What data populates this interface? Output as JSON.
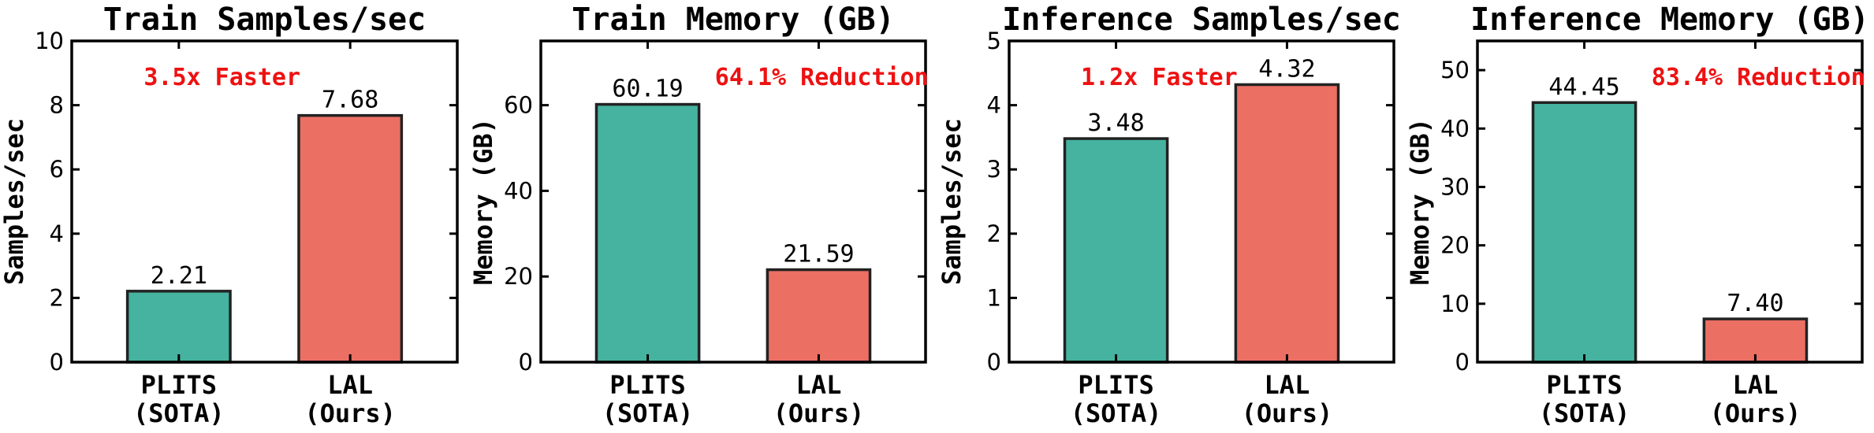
{
  "colors": {
    "sota": "#45b39f",
    "ours": "#ec6f64",
    "annotation": "#ee1111"
  },
  "chart_data": [
    {
      "type": "bar",
      "title": "Train Samples/sec",
      "ylabel": "Samples/sec",
      "categories": [
        [
          "PLITS",
          "(SOTA)"
        ],
        [
          "LAL",
          "(Ours)"
        ]
      ],
      "values": [
        2.21,
        7.68
      ],
      "value_labels": [
        "2.21",
        "7.68"
      ],
      "ylim": [
        0,
        10
      ],
      "yticks": [
        0,
        2,
        4,
        6,
        8,
        10
      ],
      "annotation": "3.5x Faster",
      "annotation_position": "top-left",
      "grid": false
    },
    {
      "type": "bar",
      "title": "Train Memory (GB)",
      "ylabel": "Memory (GB)",
      "categories": [
        [
          "PLITS",
          "(SOTA)"
        ],
        [
          "LAL",
          "(Ours)"
        ]
      ],
      "values": [
        60.19,
        21.59
      ],
      "value_labels": [
        "60.19",
        "21.59"
      ],
      "ylim": [
        0,
        75
      ],
      "yticks": [
        0,
        20,
        40,
        60
      ],
      "annotation": "64.1% Reduction",
      "annotation_position": "top-right",
      "grid": false
    },
    {
      "type": "bar",
      "title": "Inference Samples/sec",
      "ylabel": "Samples/sec",
      "categories": [
        [
          "PLITS",
          "(SOTA)"
        ],
        [
          "LAL",
          "(Ours)"
        ]
      ],
      "values": [
        3.48,
        4.32
      ],
      "value_labels": [
        "3.48",
        "4.32"
      ],
      "ylim": [
        0,
        5
      ],
      "yticks": [
        0,
        1,
        2,
        3,
        4,
        5
      ],
      "annotation": "1.2x Faster",
      "annotation_position": "top-left",
      "grid": false
    },
    {
      "type": "bar",
      "title": "Inference Memory (GB)",
      "ylabel": "Memory (GB)",
      "categories": [
        [
          "PLITS",
          "(SOTA)"
        ],
        [
          "LAL",
          "(Ours)"
        ]
      ],
      "values": [
        44.45,
        7.4
      ],
      "value_labels": [
        "44.45",
        "7.40"
      ],
      "ylim": [
        0,
        55
      ],
      "yticks": [
        0,
        10,
        20,
        30,
        40,
        50
      ],
      "annotation": "83.4% Reduction",
      "annotation_position": "top-right",
      "grid": false
    }
  ]
}
